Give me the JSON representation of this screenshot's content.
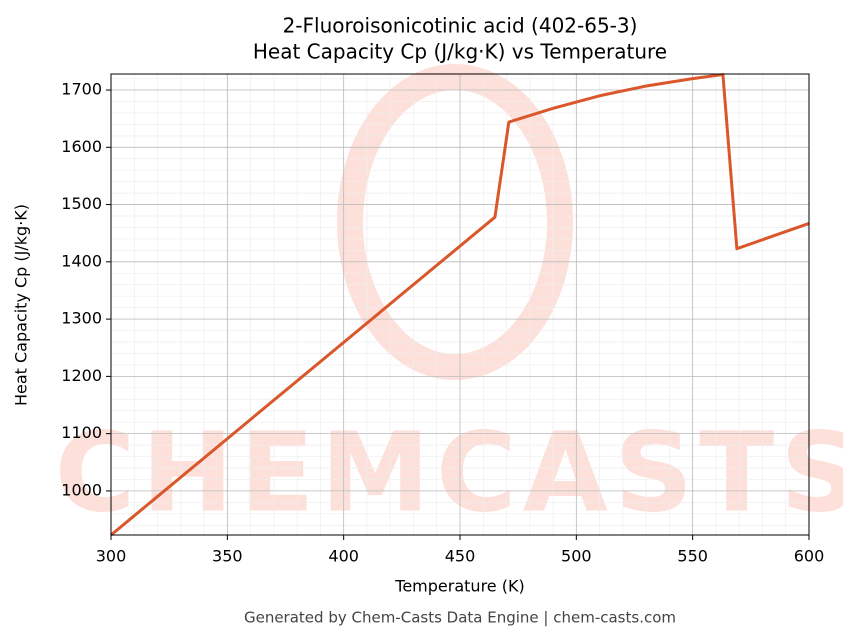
{
  "chart_data": {
    "type": "line",
    "title": "2-Fluoroisonicotinic acid (402-65-3)",
    "subtitle": "Heat Capacity Cp (J/kg·K) vs Temperature",
    "x_label": "Temperature (K)",
    "y_label": "Heat Capacity Cp (J/kg·K)",
    "watermark": "CHEMCASTS",
    "footer": "Generated by Chem-Casts Data Engine | chem-casts.com",
    "x": [
      300,
      465,
      471,
      490,
      510,
      530,
      550,
      563,
      569,
      600
    ],
    "values": [
      923,
      1478,
      1644,
      1668,
      1690,
      1707,
      1720,
      1727,
      1423,
      1467
    ],
    "color": "#d9572b",
    "xlim": [
      300,
      600
    ],
    "xticks": [
      300,
      350,
      400,
      450,
      500,
      550,
      600
    ],
    "ylim": [
      923,
      1728
    ],
    "yticks": [
      1000,
      1100,
      1200,
      1300,
      1400,
      1500,
      1600,
      1700
    ],
    "grid": true,
    "minor_grid": true
  }
}
